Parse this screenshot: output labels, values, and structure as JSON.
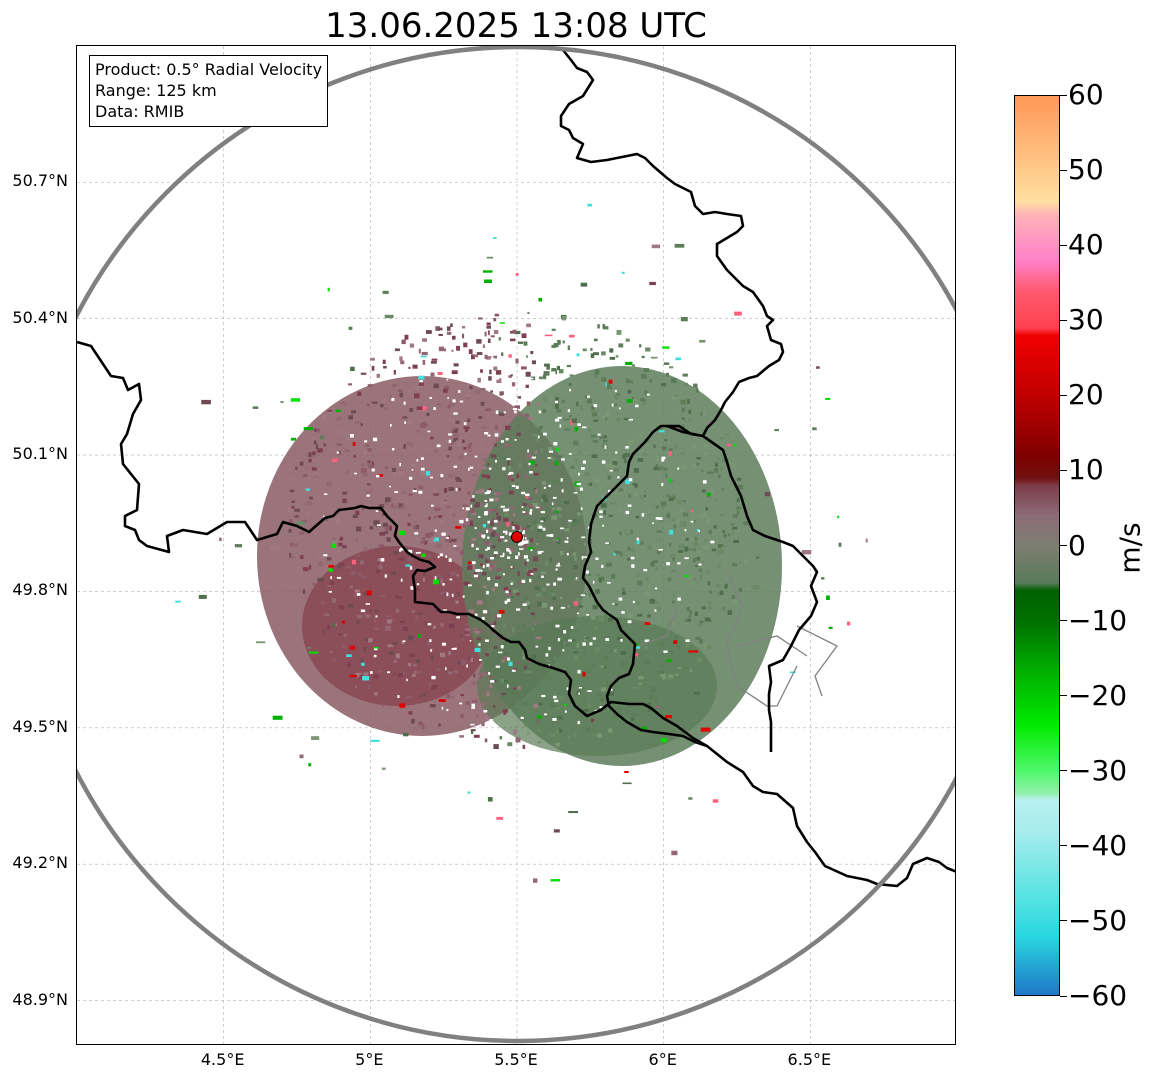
{
  "title": "13.06.2025 13:08 UTC",
  "info_box": {
    "product": "Product: 0.5° Radial Velocity",
    "range": "Range: 125 km",
    "data_source": "Data: RMIB"
  },
  "map": {
    "lon_range": [
      4.0,
      7.0
    ],
    "lat_range": [
      48.8,
      51.0
    ],
    "radar_site": {
      "lon": 5.5,
      "lat": 49.92
    },
    "lon_ticks": [
      {
        "value": 4.5,
        "label": "4.5°E"
      },
      {
        "value": 5.0,
        "label": "5°E"
      },
      {
        "value": 5.5,
        "label": "5.5°E"
      },
      {
        "value": 6.0,
        "label": "6°E"
      },
      {
        "value": 6.5,
        "label": "6.5°E"
      }
    ],
    "lat_ticks": [
      {
        "value": 48.9,
        "label": "48.9°N"
      },
      {
        "value": 49.2,
        "label": "49.2°N"
      },
      {
        "value": 49.5,
        "label": "49.5°N"
      },
      {
        "value": 49.8,
        "label": "49.8°N"
      },
      {
        "value": 50.1,
        "label": "50.1°N"
      },
      {
        "value": 50.4,
        "label": "50.4°N"
      },
      {
        "value": 50.7,
        "label": "50.7°N"
      }
    ],
    "colors": {
      "range_ring": "#808080",
      "border": "#000000",
      "admin": "#808080",
      "site": "#e00000",
      "grid": "#b0b0b0"
    }
  },
  "colorbar": {
    "label": "m/s",
    "min": -60,
    "max": 60,
    "ticks": [
      "60",
      "50",
      "40",
      "30",
      "20",
      "10",
      "0",
      "−10",
      "−20",
      "−30",
      "−40",
      "−50",
      "−60"
    ],
    "tick_values": [
      60,
      50,
      40,
      30,
      20,
      10,
      0,
      -10,
      -20,
      -30,
      -40,
      -50,
      -60
    ],
    "gradient": [
      {
        "v": -60,
        "c": "#1f78c8"
      },
      {
        "v": -52,
        "c": "#2ad8e0"
      },
      {
        "v": -46,
        "c": "#5fe4e4"
      },
      {
        "v": -38,
        "c": "#a8ecec"
      },
      {
        "v": -34,
        "c": "#b8f0f0"
      },
      {
        "v": -33,
        "c": "#8ff0a8"
      },
      {
        "v": -30,
        "c": "#4ef86a"
      },
      {
        "v": -24,
        "c": "#00ea00"
      },
      {
        "v": -16,
        "c": "#00a800"
      },
      {
        "v": -10,
        "c": "#007000"
      },
      {
        "v": -6,
        "c": "#006000"
      },
      {
        "v": -5,
        "c": "#5a7a5a"
      },
      {
        "v": 0,
        "c": "#7e7e70"
      },
      {
        "v": 4,
        "c": "#8c6c78"
      },
      {
        "v": 8,
        "c": "#7c3c48"
      },
      {
        "v": 9,
        "c": "#701010"
      },
      {
        "v": 12,
        "c": "#800000"
      },
      {
        "v": 20,
        "c": "#c00000"
      },
      {
        "v": 28,
        "c": "#f00000"
      },
      {
        "v": 29,
        "c": "#ff4050"
      },
      {
        "v": 34,
        "c": "#ff5a70"
      },
      {
        "v": 38,
        "c": "#ff80c8"
      },
      {
        "v": 44,
        "c": "#ffb0b8"
      },
      {
        "v": 46,
        "c": "#ffe0a0"
      },
      {
        "v": 52,
        "c": "#ffc080"
      },
      {
        "v": 60,
        "c": "#ff9858"
      }
    ]
  }
}
